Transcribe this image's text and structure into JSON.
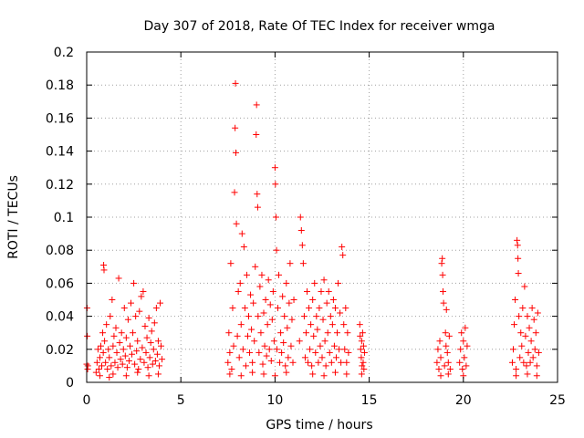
{
  "chart_data": {
    "type": "scatter",
    "title": "Day 307 of 2018, Rate Of TEC Index for receiver wmga",
    "xlabel": "GPS time / hours",
    "ylabel": "ROTI / TECUs",
    "xlim": [
      0,
      25
    ],
    "ylim": [
      0,
      0.2
    ],
    "xticks": [
      0,
      5,
      10,
      15,
      20,
      25
    ],
    "yticks": [
      0,
      0.02,
      0.04,
      0.06,
      0.08,
      0.1,
      0.12,
      0.14,
      0.16,
      0.18,
      0.2
    ],
    "xtick_labels": [
      "0",
      "5",
      "10",
      "15",
      "20",
      "25"
    ],
    "ytick_labels": [
      "0",
      "0.02",
      "0.04",
      "0.06",
      "0.08",
      "0.1",
      "0.12",
      "0.14",
      "0.16",
      "0.18",
      "0.2"
    ],
    "grid": true,
    "marker": "+",
    "color": "#ff0000",
    "series": [
      {
        "points": [
          [
            0.0,
            0.011
          ],
          [
            0.02,
            0.045
          ],
          [
            0.03,
            0.028
          ],
          [
            0.05,
            0.008
          ],
          [
            0.06,
            0.01
          ],
          [
            0.5,
            0.006
          ],
          [
            0.55,
            0.012
          ],
          [
            0.6,
            0.02
          ],
          [
            0.65,
            0.008
          ],
          [
            0.7,
            0.015
          ],
          [
            0.75,
            0.022
          ],
          [
            0.8,
            0.01
          ],
          [
            0.85,
            0.03
          ],
          [
            0.88,
            0.018
          ],
          [
            0.9,
            0.071
          ],
          [
            0.92,
            0.068
          ],
          [
            0.95,
            0.025
          ],
          [
            1.0,
            0.012
          ],
          [
            1.05,
            0.035
          ],
          [
            1.1,
            0.008
          ],
          [
            1.15,
            0.02
          ],
          [
            1.2,
            0.015
          ],
          [
            1.25,
            0.04
          ],
          [
            1.3,
            0.01
          ],
          [
            1.35,
            0.05
          ],
          [
            1.4,
            0.022
          ],
          [
            1.45,
            0.028
          ],
          [
            1.5,
            0.012
          ],
          [
            1.55,
            0.033
          ],
          [
            1.6,
            0.018
          ],
          [
            1.65,
            0.009
          ],
          [
            1.7,
            0.063
          ],
          [
            1.75,
            0.024
          ],
          [
            1.8,
            0.014
          ],
          [
            1.85,
            0.03
          ],
          [
            1.9,
            0.011
          ],
          [
            1.95,
            0.02
          ],
          [
            2.0,
            0.045
          ],
          [
            2.05,
            0.016
          ],
          [
            2.1,
            0.027
          ],
          [
            2.15,
            0.009
          ],
          [
            2.2,
            0.038
          ],
          [
            2.25,
            0.013
          ],
          [
            2.3,
            0.022
          ],
          [
            2.35,
            0.048
          ],
          [
            2.4,
            0.017
          ],
          [
            2.45,
            0.03
          ],
          [
            2.5,
            0.06
          ],
          [
            2.55,
            0.011
          ],
          [
            2.6,
            0.04
          ],
          [
            2.65,
            0.019
          ],
          [
            2.7,
            0.025
          ],
          [
            2.75,
            0.008
          ],
          [
            2.8,
            0.043
          ],
          [
            2.85,
            0.014
          ],
          [
            2.9,
            0.052
          ],
          [
            2.95,
            0.021
          ],
          [
            3.0,
            0.055
          ],
          [
            3.05,
            0.012
          ],
          [
            3.1,
            0.034
          ],
          [
            3.15,
            0.018
          ],
          [
            3.2,
            0.027
          ],
          [
            3.25,
            0.009
          ],
          [
            3.3,
            0.039
          ],
          [
            3.35,
            0.015
          ],
          [
            3.4,
            0.024
          ],
          [
            3.45,
            0.031
          ],
          [
            3.5,
            0.011
          ],
          [
            3.55,
            0.02
          ],
          [
            3.6,
            0.036
          ],
          [
            3.65,
            0.013
          ],
          [
            3.7,
            0.045
          ],
          [
            3.75,
            0.017
          ],
          [
            3.8,
            0.025
          ],
          [
            3.85,
            0.01
          ],
          [
            3.9,
            0.048
          ],
          [
            3.95,
            0.022
          ],
          [
            4.0,
            0.014
          ],
          [
            1.2,
            0.003
          ],
          [
            1.4,
            0.005
          ],
          [
            2.1,
            0.004
          ],
          [
            2.7,
            0.006
          ],
          [
            3.3,
            0.004
          ],
          [
            3.8,
            0.005
          ],
          [
            0.7,
            0.004
          ],
          [
            7.5,
            0.012
          ],
          [
            7.55,
            0.03
          ],
          [
            7.6,
            0.018
          ],
          [
            7.65,
            0.072
          ],
          [
            7.7,
            0.008
          ],
          [
            7.75,
            0.045
          ],
          [
            7.8,
            0.022
          ],
          [
            7.85,
            0.115
          ],
          [
            7.88,
            0.154
          ],
          [
            7.9,
            0.181
          ],
          [
            7.92,
            0.139
          ],
          [
            7.95,
            0.096
          ],
          [
            8.0,
            0.028
          ],
          [
            8.05,
            0.055
          ],
          [
            8.1,
            0.015
          ],
          [
            8.15,
            0.06
          ],
          [
            8.2,
            0.035
          ],
          [
            8.25,
            0.09
          ],
          [
            8.3,
            0.02
          ],
          [
            8.35,
            0.082
          ],
          [
            8.4,
            0.045
          ],
          [
            8.45,
            0.01
          ],
          [
            8.5,
            0.065
          ],
          [
            8.55,
            0.028
          ],
          [
            8.6,
            0.04
          ],
          [
            8.65,
            0.018
          ],
          [
            8.7,
            0.053
          ],
          [
            8.75,
            0.032
          ],
          [
            8.8,
            0.012
          ],
          [
            8.85,
            0.048
          ],
          [
            8.9,
            0.025
          ],
          [
            8.95,
            0.07
          ],
          [
            9.0,
            0.15
          ],
          [
            9.02,
            0.168
          ],
          [
            9.05,
            0.114
          ],
          [
            9.08,
            0.106
          ],
          [
            9.1,
            0.04
          ],
          [
            9.15,
            0.018
          ],
          [
            9.2,
            0.058
          ],
          [
            9.25,
            0.03
          ],
          [
            9.3,
            0.065
          ],
          [
            9.35,
            0.011
          ],
          [
            9.4,
            0.042
          ],
          [
            9.45,
            0.022
          ],
          [
            9.5,
            0.05
          ],
          [
            9.55,
            0.016
          ],
          [
            9.6,
            0.035
          ],
          [
            9.65,
            0.062
          ],
          [
            9.7,
            0.02
          ],
          [
            9.75,
            0.047
          ],
          [
            9.8,
            0.013
          ],
          [
            9.85,
            0.038
          ],
          [
            9.9,
            0.055
          ],
          [
            9.95,
            0.025
          ],
          [
            10.0,
            0.13
          ],
          [
            10.02,
            0.12
          ],
          [
            10.05,
            0.1
          ],
          [
            10.08,
            0.08
          ],
          [
            10.1,
            0.02
          ],
          [
            10.15,
            0.045
          ],
          [
            10.2,
            0.065
          ],
          [
            10.25,
            0.012
          ],
          [
            10.3,
            0.03
          ],
          [
            10.35,
            0.018
          ],
          [
            10.4,
            0.052
          ],
          [
            10.45,
            0.024
          ],
          [
            10.5,
            0.04
          ],
          [
            10.55,
            0.01
          ],
          [
            10.6,
            0.06
          ],
          [
            10.65,
            0.033
          ],
          [
            10.7,
            0.015
          ],
          [
            10.75,
            0.048
          ],
          [
            10.8,
            0.072
          ],
          [
            10.85,
            0.022
          ],
          [
            10.9,
            0.038
          ],
          [
            10.95,
            0.012
          ],
          [
            11.0,
            0.05
          ],
          [
            7.6,
            0.005
          ],
          [
            8.2,
            0.004
          ],
          [
            8.8,
            0.006
          ],
          [
            9.4,
            0.005
          ],
          [
            10.0,
            0.004
          ],
          [
            10.6,
            0.006
          ],
          [
            11.3,
            0.025
          ],
          [
            11.35,
            0.1
          ],
          [
            11.4,
            0.092
          ],
          [
            11.45,
            0.083
          ],
          [
            11.5,
            0.072
          ],
          [
            11.55,
            0.04
          ],
          [
            11.6,
            0.015
          ],
          [
            11.65,
            0.03
          ],
          [
            11.7,
            0.055
          ],
          [
            11.75,
            0.012
          ],
          [
            11.8,
            0.045
          ],
          [
            11.85,
            0.02
          ],
          [
            11.9,
            0.035
          ],
          [
            11.95,
            0.01
          ],
          [
            12.0,
            0.05
          ],
          [
            12.05,
            0.028
          ],
          [
            12.1,
            0.06
          ],
          [
            12.15,
            0.018
          ],
          [
            12.2,
            0.04
          ],
          [
            12.25,
            0.032
          ],
          [
            12.3,
            0.012
          ],
          [
            12.35,
            0.045
          ],
          [
            12.4,
            0.022
          ],
          [
            12.45,
            0.055
          ],
          [
            12.5,
            0.015
          ],
          [
            12.55,
            0.038
          ],
          [
            12.6,
            0.062
          ],
          [
            12.65,
            0.025
          ],
          [
            12.7,
            0.01
          ],
          [
            12.75,
            0.048
          ],
          [
            12.8,
            0.03
          ],
          [
            12.85,
            0.055
          ],
          [
            12.9,
            0.018
          ],
          [
            12.95,
            0.04
          ],
          [
            13.0,
            0.012
          ],
          [
            13.05,
            0.035
          ],
          [
            13.1,
            0.05
          ],
          [
            13.15,
            0.022
          ],
          [
            13.2,
            0.045
          ],
          [
            13.25,
            0.015
          ],
          [
            13.3,
            0.03
          ],
          [
            13.35,
            0.06
          ],
          [
            13.4,
            0.02
          ],
          [
            13.45,
            0.042
          ],
          [
            13.5,
            0.012
          ],
          [
            13.55,
            0.082
          ],
          [
            13.6,
            0.077
          ],
          [
            13.65,
            0.035
          ],
          [
            13.7,
            0.02
          ],
          [
            13.75,
            0.045
          ],
          [
            13.8,
            0.012
          ],
          [
            13.85,
            0.03
          ],
          [
            13.9,
            0.018
          ],
          [
            14.5,
            0.035
          ],
          [
            14.52,
            0.028
          ],
          [
            14.55,
            0.02
          ],
          [
            14.58,
            0.015
          ],
          [
            14.6,
            0.025
          ],
          [
            14.62,
            0.01
          ],
          [
            14.65,
            0.03
          ],
          [
            14.68,
            0.012
          ],
          [
            14.7,
            0.022
          ],
          [
            14.72,
            0.008
          ],
          [
            14.75,
            0.018
          ],
          [
            12.0,
            0.005
          ],
          [
            12.6,
            0.004
          ],
          [
            13.2,
            0.006
          ],
          [
            13.8,
            0.005
          ],
          [
            14.6,
            0.005
          ],
          [
            18.6,
            0.012
          ],
          [
            18.65,
            0.02
          ],
          [
            18.7,
            0.008
          ],
          [
            18.75,
            0.025
          ],
          [
            18.8,
            0.015
          ],
          [
            18.85,
            0.072
          ],
          [
            18.88,
            0.075
          ],
          [
            18.9,
            0.065
          ],
          [
            18.92,
            0.055
          ],
          [
            18.95,
            0.048
          ],
          [
            19.0,
            0.01
          ],
          [
            19.05,
            0.03
          ],
          [
            19.08,
            0.022
          ],
          [
            19.1,
            0.044
          ],
          [
            19.15,
            0.018
          ],
          [
            19.2,
            0.012
          ],
          [
            19.25,
            0.028
          ],
          [
            19.3,
            0.008
          ],
          [
            19.8,
            0.012
          ],
          [
            19.85,
            0.02
          ],
          [
            19.9,
            0.03
          ],
          [
            19.95,
            0.008
          ],
          [
            20.0,
            0.025
          ],
          [
            20.05,
            0.015
          ],
          [
            20.1,
            0.033
          ],
          [
            20.15,
            0.01
          ],
          [
            20.2,
            0.022
          ],
          [
            18.8,
            0.004
          ],
          [
            19.2,
            0.005
          ],
          [
            20.0,
            0.004
          ],
          [
            22.6,
            0.012
          ],
          [
            22.65,
            0.02
          ],
          [
            22.7,
            0.035
          ],
          [
            22.75,
            0.05
          ],
          [
            22.8,
            0.008
          ],
          [
            22.85,
            0.086
          ],
          [
            22.88,
            0.083
          ],
          [
            22.9,
            0.075
          ],
          [
            22.92,
            0.066
          ],
          [
            22.95,
            0.04
          ],
          [
            23.0,
            0.015
          ],
          [
            23.05,
            0.03
          ],
          [
            23.1,
            0.022
          ],
          [
            23.15,
            0.045
          ],
          [
            23.2,
            0.012
          ],
          [
            23.25,
            0.058
          ],
          [
            23.3,
            0.028
          ],
          [
            23.35,
            0.01
          ],
          [
            23.4,
            0.04
          ],
          [
            23.45,
            0.018
          ],
          [
            23.5,
            0.033
          ],
          [
            23.55,
            0.012
          ],
          [
            23.6,
            0.025
          ],
          [
            23.65,
            0.045
          ],
          [
            23.7,
            0.015
          ],
          [
            23.75,
            0.038
          ],
          [
            23.8,
            0.02
          ],
          [
            23.85,
            0.03
          ],
          [
            23.9,
            0.01
          ],
          [
            23.95,
            0.042
          ],
          [
            24.0,
            0.018
          ],
          [
            22.8,
            0.004
          ],
          [
            23.4,
            0.005
          ],
          [
            23.9,
            0.004
          ]
        ]
      }
    ]
  }
}
